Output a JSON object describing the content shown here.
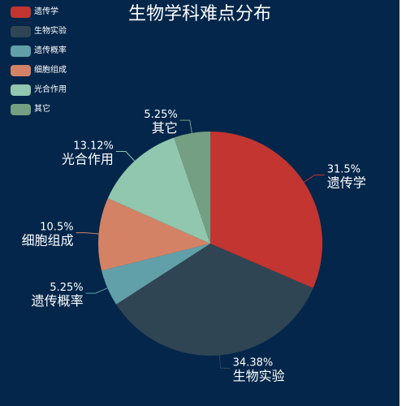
{
  "title": "生物学科难点分布",
  "chart_data": {
    "type": "pie",
    "title": "生物学科难点分布",
    "legend": "top-left",
    "slices": [
      {
        "name": "遗传学",
        "value": 31.5,
        "label": "31.5%",
        "color": "#c23531"
      },
      {
        "name": "生物实验",
        "value": 34.38,
        "label": "34.38%",
        "color": "#2f4554"
      },
      {
        "name": "遗传概率",
        "value": 5.25,
        "label": "5.25%",
        "color": "#61a0a8"
      },
      {
        "name": "细胞组成",
        "value": 10.5,
        "label": "10.5%",
        "color": "#d48265"
      },
      {
        "name": "光合作用",
        "value": 13.12,
        "label": "13.12%",
        "color": "#91c7ae"
      },
      {
        "name": "其它",
        "value": 5.25,
        "label": "5.25%",
        "color": "#749f83"
      }
    ]
  }
}
